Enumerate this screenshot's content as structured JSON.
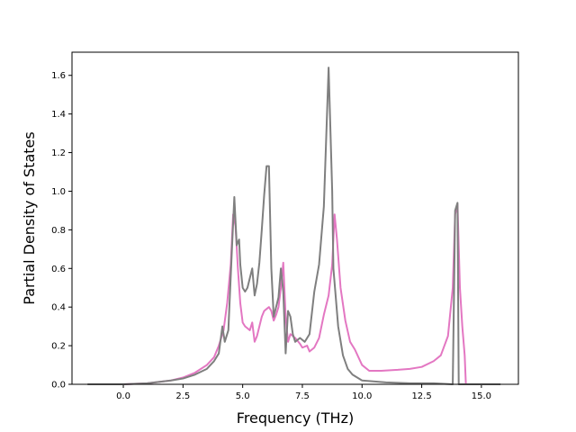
{
  "chart_data": {
    "type": "line",
    "title": "",
    "xlabel": "Frequency (THz)",
    "ylabel": "Partial Density of States",
    "xlim": [
      -2.15,
      16.55
    ],
    "ylim": [
      0.0,
      1.72
    ],
    "xticks": [
      0.0,
      2.5,
      5.0,
      7.5,
      10.0,
      12.5,
      15.0
    ],
    "xtick_labels": [
      "0.0",
      "2.5",
      "5.0",
      "7.5",
      "10.0",
      "12.5",
      "15.0"
    ],
    "yticks": [
      0.0,
      0.2,
      0.4,
      0.6,
      0.8,
      1.0,
      1.2,
      1.4,
      1.6
    ],
    "ytick_labels": [
      "0.0",
      "0.2",
      "0.4",
      "0.6",
      "0.8",
      "1.0",
      "1.2",
      "1.4",
      "1.6"
    ],
    "grid": false,
    "legend": "none",
    "series": [
      {
        "color": "#e377c2",
        "x": [
          -1.4,
          0.0,
          1.0,
          2.0,
          2.5,
          3.0,
          3.5,
          3.8,
          4.0,
          4.2,
          4.35,
          4.5,
          4.6,
          4.7,
          4.8,
          4.9,
          5.0,
          5.1,
          5.2,
          5.3,
          5.4,
          5.5,
          5.6,
          5.7,
          5.8,
          5.9,
          6.0,
          6.1,
          6.2,
          6.3,
          6.4,
          6.5,
          6.6,
          6.7,
          6.8,
          6.9,
          7.0,
          7.2,
          7.4,
          7.5,
          7.7,
          7.8,
          8.0,
          8.2,
          8.4,
          8.6,
          8.75,
          8.85,
          8.95,
          9.1,
          9.3,
          9.5,
          9.7,
          10.0,
          10.3,
          10.8,
          11.5,
          12.0,
          12.5,
          13.0,
          13.3,
          13.6,
          13.8,
          13.9,
          14.0,
          14.1,
          14.2,
          14.3,
          14.35
        ],
        "values": [
          0.0,
          0.0,
          0.005,
          0.02,
          0.035,
          0.06,
          0.1,
          0.14,
          0.2,
          0.28,
          0.42,
          0.62,
          0.88,
          0.82,
          0.6,
          0.42,
          0.32,
          0.3,
          0.29,
          0.28,
          0.32,
          0.22,
          0.25,
          0.3,
          0.35,
          0.38,
          0.39,
          0.4,
          0.38,
          0.33,
          0.36,
          0.4,
          0.5,
          0.63,
          0.35,
          0.22,
          0.26,
          0.24,
          0.21,
          0.19,
          0.2,
          0.17,
          0.19,
          0.24,
          0.36,
          0.46,
          0.62,
          0.88,
          0.75,
          0.5,
          0.33,
          0.22,
          0.18,
          0.1,
          0.07,
          0.07,
          0.075,
          0.08,
          0.09,
          0.12,
          0.15,
          0.25,
          0.5,
          0.88,
          0.93,
          0.5,
          0.3,
          0.15,
          0.0
        ]
      },
      {
        "color": "#7f7f7f",
        "x": [
          -1.5,
          0.0,
          1.0,
          2.0,
          2.5,
          3.0,
          3.5,
          3.8,
          4.0,
          4.15,
          4.25,
          4.4,
          4.55,
          4.65,
          4.75,
          4.85,
          4.9,
          5.0,
          5.1,
          5.2,
          5.3,
          5.4,
          5.5,
          5.6,
          5.7,
          5.8,
          5.9,
          6.0,
          6.1,
          6.2,
          6.3,
          6.4,
          6.5,
          6.6,
          6.7,
          6.8,
          6.9,
          7.0,
          7.1,
          7.2,
          7.4,
          7.6,
          7.8,
          8.0,
          8.2,
          8.4,
          8.6,
          8.75,
          8.8,
          8.9,
          9.0,
          9.2,
          9.4,
          9.6,
          10.0,
          11.0,
          12.0,
          13.0,
          13.8,
          13.9,
          14.0,
          14.05,
          14.2,
          15.0,
          15.8
        ],
        "values": [
          0.0,
          0.0,
          0.005,
          0.02,
          0.03,
          0.05,
          0.08,
          0.12,
          0.16,
          0.3,
          0.22,
          0.28,
          0.7,
          0.97,
          0.72,
          0.75,
          0.62,
          0.5,
          0.48,
          0.5,
          0.55,
          0.6,
          0.46,
          0.52,
          0.63,
          0.8,
          0.98,
          1.13,
          1.13,
          0.6,
          0.35,
          0.4,
          0.45,
          0.6,
          0.48,
          0.16,
          0.38,
          0.35,
          0.26,
          0.22,
          0.24,
          0.22,
          0.26,
          0.48,
          0.62,
          0.92,
          1.64,
          1.0,
          0.6,
          0.45,
          0.3,
          0.15,
          0.08,
          0.05,
          0.02,
          0.01,
          0.005,
          0.005,
          0.0,
          0.9,
          0.94,
          0.0,
          0.0,
          0.0,
          0.0
        ]
      }
    ]
  }
}
